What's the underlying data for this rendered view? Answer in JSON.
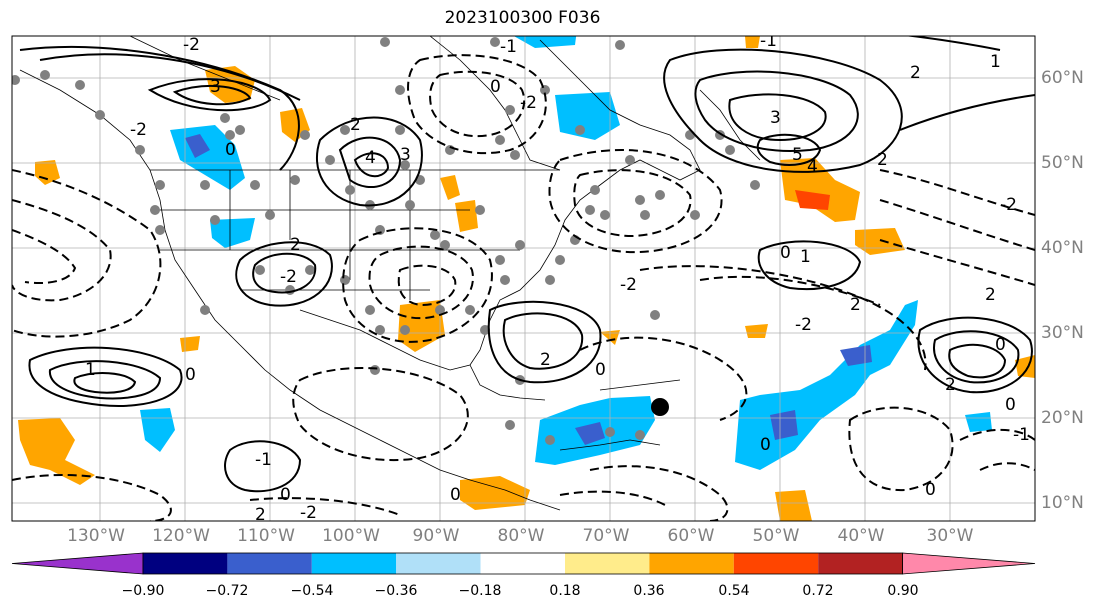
{
  "title": "2023100300 F036",
  "lat_labels": [
    "60°N",
    "50°N",
    "40°N",
    "30°N",
    "20°N",
    "10°N"
  ],
  "lon_labels": [
    "130°W",
    "120°W",
    "110°W",
    "100°W",
    "90°W",
    "80°W",
    "70°W",
    "60°W",
    "50°W",
    "40°W",
    "30°W"
  ],
  "colorbar": {
    "ticks": [
      "−0.90",
      "−0.72",
      "−0.54",
      "−0.36",
      "−0.18",
      "0.18",
      "0.36",
      "0.54",
      "0.72",
      "0.90"
    ],
    "colors": [
      "#9932cc",
      "#000080",
      "#3a5fcd",
      "#00bfff",
      "#b0e0f8",
      "#ffffff",
      "#ffec8b",
      "#ffa500",
      "#ff4500",
      "#b22222",
      "#ff88aa"
    ]
  },
  "contour_labels": [
    "3",
    "-2",
    "0",
    "2",
    "4",
    "3",
    "-2",
    "0",
    "-1",
    "2",
    "-2",
    "2",
    "0",
    "-2",
    "3",
    "5",
    "4",
    "2",
    "2",
    "1",
    "0",
    "1",
    "2",
    "-2",
    "-2",
    "-2",
    "0",
    "2",
    "0",
    "1",
    "0",
    "0",
    "-2",
    "0",
    "-1",
    "0",
    "2",
    "-1",
    "0",
    "-1",
    "2"
  ],
  "marker_color": "#000000"
}
